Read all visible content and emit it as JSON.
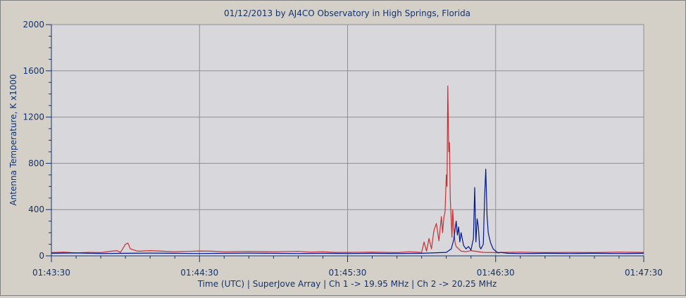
{
  "chart_data": {
    "type": "line",
    "title": "01/12/2013  by  AJ4CO Observatory  in  High Springs, Florida",
    "xlabel": "Time (UTC)  |  SuperJove Array  |  Ch 1 -> 19.95 MHz  |  Ch 2 -> 20.25 MHz",
    "ylabel": "Antenna Temperature, K x1000",
    "x_unit": "seconds since 01:43:30 UTC",
    "xlim": [
      0,
      240
    ],
    "ylim": [
      0,
      2000
    ],
    "x_ticks": [
      {
        "value": 0,
        "label": "01:43:30"
      },
      {
        "value": 60,
        "label": "01:44:30"
      },
      {
        "value": 120,
        "label": "01:45:30"
      },
      {
        "value": 180,
        "label": "01:46:30"
      },
      {
        "value": 240,
        "label": "01:47:30"
      }
    ],
    "y_ticks": [
      {
        "value": 0,
        "label": "0"
      },
      {
        "value": 400,
        "label": "400"
      },
      {
        "value": 800,
        "label": "800"
      },
      {
        "value": 1200,
        "label": "1200"
      },
      {
        "value": 1600,
        "label": "1600"
      },
      {
        "value": 2000,
        "label": "2000"
      }
    ],
    "grid": true,
    "series": [
      {
        "name": "Ch 1 -> 19.95 MHz",
        "color": "#c83030",
        "x": [
          0,
          5,
          10,
          15,
          20,
          25,
          26.5,
          28,
          30,
          31,
          32,
          35,
          40,
          45,
          50,
          55,
          60,
          65,
          70,
          80,
          90,
          100,
          105,
          110,
          115,
          120,
          130,
          140,
          145,
          150,
          151,
          152,
          153,
          154,
          155,
          156,
          157,
          158,
          158.5,
          159,
          159.5,
          160,
          160.3,
          160.6,
          161,
          161.3,
          161.6,
          162,
          162.3,
          162.6,
          163,
          163.5,
          164,
          165,
          166,
          168,
          170,
          175,
          180,
          190,
          200,
          210,
          220,
          230,
          240
        ],
        "y": [
          28,
          32,
          25,
          30,
          28,
          42,
          45,
          30,
          100,
          110,
          60,
          40,
          45,
          40,
          35,
          38,
          42,
          40,
          35,
          38,
          35,
          38,
          32,
          35,
          30,
          30,
          32,
          28,
          35,
          30,
          120,
          40,
          150,
          60,
          220,
          280,
          130,
          340,
          200,
          330,
          380,
          700,
          600,
          1470,
          900,
          980,
          500,
          300,
          160,
          400,
          250,
          120,
          80,
          60,
          40,
          35,
          45,
          30,
          28,
          32,
          28,
          30,
          28,
          32,
          30
        ]
      },
      {
        "name": "Ch 2 -> 20.25 MHz",
        "color": "#00188c",
        "x": [
          0,
          10,
          20,
          30,
          40,
          50,
          60,
          70,
          80,
          90,
          100,
          110,
          120,
          130,
          140,
          150,
          160,
          162,
          163,
          164,
          164.5,
          165,
          165.5,
          166,
          167,
          168,
          169,
          170,
          171,
          171.5,
          172,
          172.5,
          173,
          173.5,
          174,
          175,
          175.5,
          176,
          176.5,
          177,
          177.5,
          178,
          179,
          180,
          181,
          182,
          185,
          190,
          200,
          210,
          220,
          230,
          240
        ],
        "y": [
          22,
          25,
          20,
          22,
          24,
          22,
          20,
          22,
          24,
          22,
          20,
          22,
          20,
          22,
          20,
          22,
          30,
          60,
          140,
          300,
          180,
          250,
          120,
          200,
          90,
          60,
          80,
          50,
          150,
          590,
          120,
          320,
          250,
          80,
          60,
          100,
          500,
          750,
          350,
          200,
          150,
          110,
          60,
          40,
          25,
          30,
          22,
          20,
          22,
          20,
          22,
          20,
          22
        ]
      }
    ]
  }
}
